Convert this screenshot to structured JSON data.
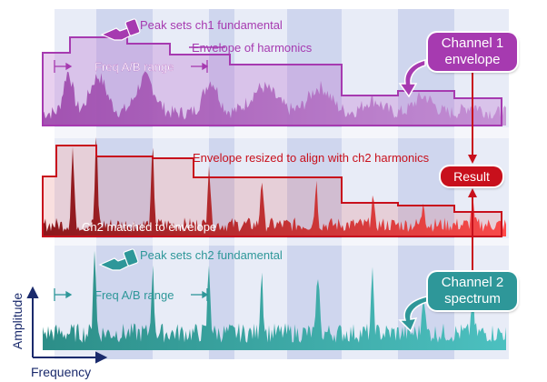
{
  "annotations": {
    "peak_ch1": "Peak sets ch1 fundamental",
    "envelope_harmonics": "Envelope of harmonics",
    "freq_range_top": "Freq A/B range",
    "envelope_resized": "Envelope resized to align with ch2 harmonics",
    "ch2_matched": "Ch2 matched to envelope",
    "peak_ch2": "Peak sets ch2 fundamental",
    "freq_range_bottom": "Freq A/B range"
  },
  "callouts": {
    "channel1_line1": "Channel 1",
    "channel1_line2": "envelope",
    "result": "Result",
    "channel2_line1": "Channel 2",
    "channel2_line2": "spectrum"
  },
  "axes": {
    "x_label": "Frequency",
    "y_label": "Amplitude"
  },
  "colors": {
    "ch1": "#a63ab0",
    "ch2": "#2e9799",
    "result": "#c8101c",
    "axis": "#1a2a6c",
    "band_light": "#e8ecf7",
    "band_dark": "#cfd6ee"
  },
  "icons": [
    "hand-pointer-icon",
    "curved-arrow-icon"
  ]
}
